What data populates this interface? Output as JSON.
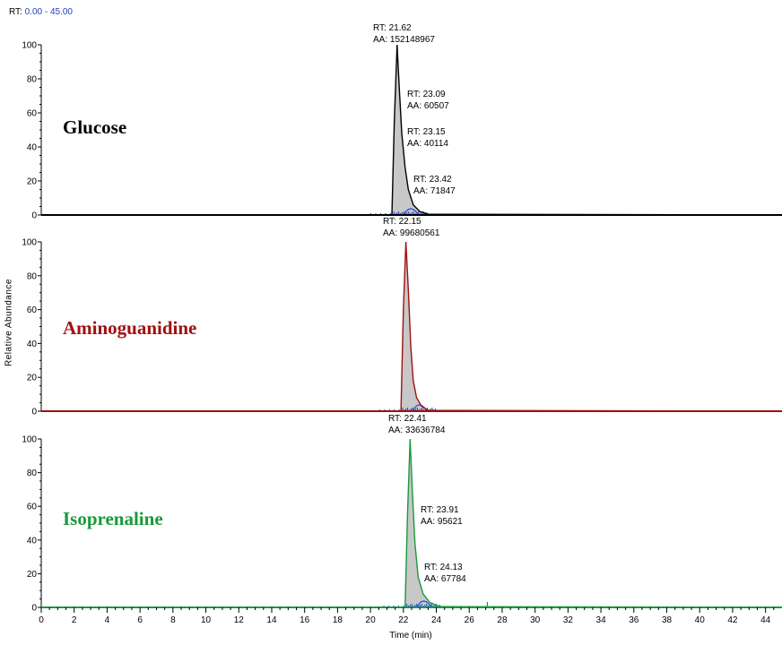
{
  "header": {
    "rt_prefix": "RT:",
    "rt_range": "0.00 - 45.00"
  },
  "axis": {
    "ylabel": "Relative Abundance",
    "xlabel": "Time (min)"
  },
  "colors": {
    "glucose": "#000000",
    "aminoguanidine": "#a01010",
    "isoprenaline": "#1a9a3a",
    "baseline_marks": "#1f3fdf",
    "fill": "#c8c8c8"
  },
  "chart_data": [
    {
      "type": "line",
      "title": "Glucose",
      "xlim": [
        0,
        45
      ],
      "ylim": [
        0,
        100
      ],
      "xticks": [
        0,
        2,
        4,
        6,
        8,
        10,
        12,
        14,
        16,
        18,
        20,
        22,
        24,
        26,
        28,
        30,
        32,
        34,
        36,
        38,
        40,
        42,
        44
      ],
      "yticks": [
        0,
        20,
        40,
        60,
        80,
        100
      ],
      "x": [
        0,
        21.3,
        21.45,
        21.62,
        21.75,
        21.9,
        22.1,
        22.3,
        22.6,
        23.0,
        23.5,
        45
      ],
      "y": [
        0,
        0,
        55,
        100,
        75,
        48,
        28,
        15,
        6,
        2,
        0.5,
        0
      ],
      "annotations": [
        {
          "rt": "RT: 21.62",
          "aa": "AA: 152148967"
        },
        {
          "rt": "RT: 23.09",
          "aa": "AA: 60507"
        },
        {
          "rt": "RT: 23.15",
          "aa": "AA: 40114"
        },
        {
          "rt": "RT: 23.42",
          "aa": "AA: 71847"
        }
      ]
    },
    {
      "type": "line",
      "title": "Aminoguanidine",
      "xlim": [
        0,
        45
      ],
      "ylim": [
        0,
        100
      ],
      "xticks": [
        0,
        2,
        4,
        6,
        8,
        10,
        12,
        14,
        16,
        18,
        20,
        22,
        24,
        26,
        28,
        30,
        32,
        34,
        36,
        38,
        40,
        42,
        44
      ],
      "yticks": [
        0,
        20,
        40,
        60,
        80,
        100
      ],
      "x": [
        0,
        21.85,
        22.0,
        22.15,
        22.3,
        22.45,
        22.6,
        22.8,
        23.1,
        23.5,
        45
      ],
      "y": [
        0,
        0,
        60,
        100,
        72,
        38,
        18,
        8,
        3,
        0.5,
        0
      ],
      "annotations": [
        {
          "rt": "RT: 22.15",
          "aa": "AA: 99680561"
        }
      ]
    },
    {
      "type": "line",
      "title": "Isoprenaline",
      "xlim": [
        0,
        45
      ],
      "ylim": [
        0,
        100
      ],
      "xticks": [
        0,
        2,
        4,
        6,
        8,
        10,
        12,
        14,
        16,
        18,
        20,
        22,
        24,
        26,
        28,
        30,
        32,
        34,
        36,
        38,
        40,
        42,
        44
      ],
      "yticks": [
        0,
        20,
        40,
        60,
        80,
        100
      ],
      "x": [
        0,
        22.1,
        22.25,
        22.41,
        22.55,
        22.7,
        22.9,
        23.2,
        23.6,
        24.2,
        45
      ],
      "y": [
        0,
        0,
        55,
        100,
        68,
        38,
        18,
        8,
        3,
        0.5,
        0
      ],
      "annotations": [
        {
          "rt": "RT: 22.41",
          "aa": "AA: 33636784"
        },
        {
          "rt": "RT: 23.91",
          "aa": "AA: 95621"
        },
        {
          "rt": "RT: 24.13",
          "aa": "AA: 67784"
        }
      ]
    }
  ]
}
